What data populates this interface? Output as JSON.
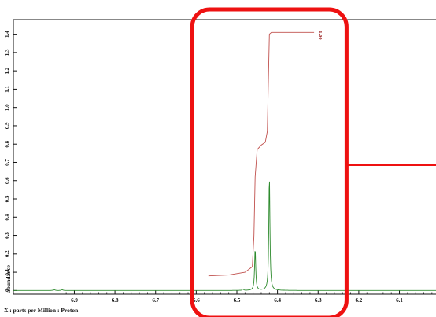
{
  "chart_data": {
    "type": "line",
    "title": "",
    "xlabel": "X : parts per Million : Proton",
    "ylabel": "abundance",
    "xlim": [
      7.05,
      6.01
    ],
    "ylim": [
      -0.02,
      1.48
    ],
    "x_ticks": [
      "6.9",
      "6.8",
      "6.7",
      "6.6",
      "6.5",
      "6.4",
      "6.3",
      "6.2",
      "6.1"
    ],
    "y_ticks": [
      "0",
      "0.1",
      "0.2",
      "0.3",
      "0.4",
      "0.5",
      "0.6",
      "0.7",
      "0.8",
      "0.9",
      "1.0",
      "1.1",
      "1.2",
      "1.3",
      "1.4"
    ],
    "grid": false,
    "series": [
      {
        "role": "spectrum",
        "color": "#2e8b2e",
        "baseline": 0.0,
        "peaks": [
          {
            "x": 6.95,
            "y": 0.008
          },
          {
            "x": 6.93,
            "y": 0.006
          },
          {
            "x": 6.485,
            "y": 0.008
          },
          {
            "x": 6.455,
            "y": 0.23
          },
          {
            "x": 6.42,
            "y": 0.63
          }
        ]
      },
      {
        "role": "integral",
        "color": "#c0504d",
        "x": [
          6.57,
          6.52,
          6.48,
          6.462,
          6.458,
          6.455,
          6.45,
          6.44,
          6.43,
          6.425,
          6.422,
          6.42,
          6.415,
          6.4,
          6.35,
          6.31
        ],
        "y": [
          0.08,
          0.085,
          0.1,
          0.13,
          0.3,
          0.62,
          0.77,
          0.795,
          0.81,
          0.87,
          1.2,
          1.4,
          1.41,
          1.41,
          1.41,
          1.41
        ]
      }
    ],
    "integral_label": "1.00",
    "annotation": {
      "type": "highlight-box",
      "color": "#ee1111",
      "x_range": [
        6.61,
        6.23
      ]
    }
  }
}
